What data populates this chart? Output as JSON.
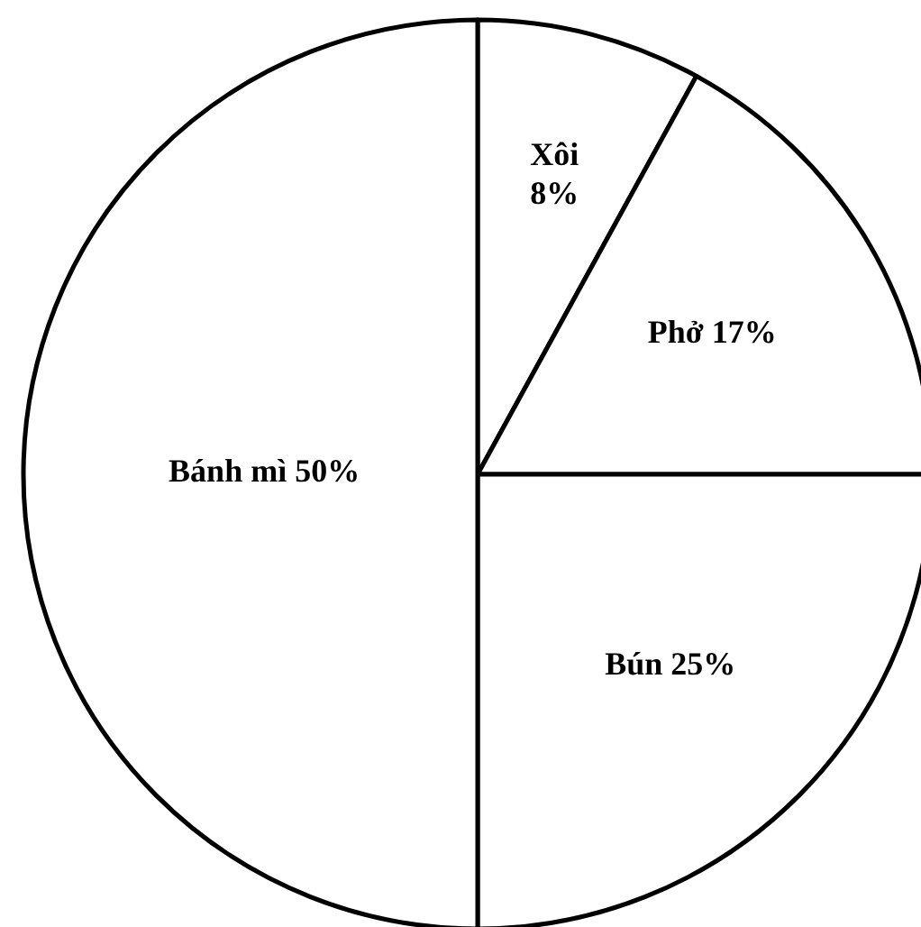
{
  "chart_data": {
    "type": "pie",
    "categories": [
      "Xôi",
      "Phở",
      "Bún",
      "Bánh mì"
    ],
    "values": [
      8,
      17,
      25,
      50
    ],
    "colors": [
      "#ffffff",
      "#ffffff",
      "#ffffff",
      "#ffffff"
    ],
    "value_labels": [
      "8%",
      "17%",
      "25%",
      "50%"
    ]
  }
}
